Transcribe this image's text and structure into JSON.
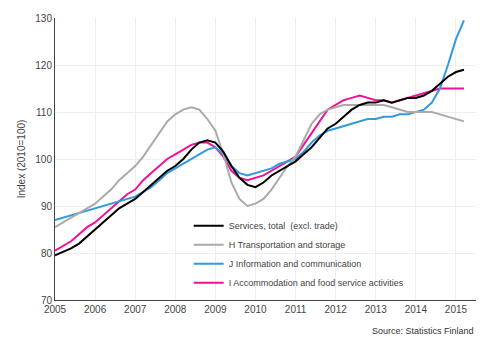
{
  "chart_data": {
    "type": "line",
    "title": "",
    "ylabel": "Index (2010=100)",
    "annotations": [
      "Source: Statistics Finland"
    ],
    "x": [
      2005.0,
      2005.2,
      2005.4,
      2005.6,
      2005.8,
      2006.0,
      2006.2,
      2006.4,
      2006.6,
      2006.8,
      2007.0,
      2007.2,
      2007.4,
      2007.6,
      2007.8,
      2008.0,
      2008.2,
      2008.4,
      2008.6,
      2008.8,
      2009.0,
      2009.2,
      2009.4,
      2009.6,
      2009.8,
      2010.0,
      2010.2,
      2010.4,
      2010.6,
      2010.8,
      2011.0,
      2011.2,
      2011.4,
      2011.6,
      2011.8,
      2012.0,
      2012.2,
      2012.4,
      2012.6,
      2012.8,
      2013.0,
      2013.2,
      2013.4,
      2013.6,
      2013.8,
      2014.0,
      2014.2,
      2014.4,
      2014.6,
      2014.8,
      2015.0,
      2015.2
    ],
    "series": [
      {
        "name": "Services, total  (excl. trade)",
        "color": "#000000",
        "values": [
          79.5,
          80.2,
          81.0,
          82.0,
          83.5,
          85.0,
          86.5,
          88.0,
          89.5,
          90.5,
          91.5,
          93.0,
          94.5,
          96.0,
          97.5,
          98.5,
          100.0,
          102.0,
          103.5,
          104.0,
          103.5,
          101.5,
          98.5,
          96.0,
          94.5,
          94.0,
          95.0,
          96.5,
          97.5,
          98.5,
          99.5,
          101.0,
          102.5,
          104.5,
          106.5,
          107.5,
          109.0,
          110.5,
          111.5,
          112.0,
          112.0,
          112.5,
          112.0,
          112.5,
          113.0,
          113.0,
          113.5,
          114.5,
          116.0,
          117.5,
          118.5,
          119.0
        ]
      },
      {
        "name": "H Transportation and storage",
        "color": "#aaaaaa",
        "values": [
          85.5,
          86.5,
          87.5,
          88.5,
          89.5,
          90.5,
          92.0,
          93.5,
          95.5,
          97.0,
          98.5,
          100.5,
          103.0,
          105.5,
          108.0,
          109.5,
          110.5,
          111.0,
          110.5,
          108.5,
          106.0,
          101.0,
          95.0,
          91.5,
          90.0,
          90.5,
          91.5,
          93.5,
          96.0,
          98.5,
          100.5,
          104.0,
          107.5,
          109.5,
          110.5,
          111.0,
          111.5,
          111.5,
          111.5,
          111.5,
          111.5,
          111.5,
          111.0,
          110.5,
          110.0,
          110.0,
          110.0,
          110.0,
          109.5,
          109.0,
          108.5,
          108.0
        ]
      },
      {
        "name": "J Information and communication",
        "color": "#3399dd",
        "values": [
          87.0,
          87.5,
          88.0,
          88.5,
          89.0,
          89.5,
          90.0,
          90.5,
          91.0,
          91.5,
          92.0,
          93.0,
          94.0,
          95.5,
          97.0,
          98.0,
          99.0,
          100.0,
          101.0,
          102.0,
          102.5,
          101.0,
          98.5,
          97.0,
          96.5,
          97.0,
          97.5,
          98.0,
          99.0,
          99.5,
          100.0,
          101.5,
          103.5,
          105.0,
          106.0,
          106.5,
          107.0,
          107.5,
          108.0,
          108.5,
          108.5,
          109.0,
          109.0,
          109.5,
          109.5,
          110.0,
          110.5,
          112.0,
          115.0,
          120.0,
          125.5,
          129.5
        ]
      },
      {
        "name": "I Accommodation and food service activities",
        "color": "#ee1199",
        "values": [
          80.5,
          81.5,
          82.5,
          84.0,
          85.5,
          86.5,
          88.0,
          89.5,
          91.0,
          92.5,
          93.5,
          95.5,
          97.0,
          98.5,
          100.0,
          101.0,
          102.0,
          103.0,
          103.5,
          103.5,
          102.5,
          100.5,
          97.5,
          96.0,
          95.5,
          96.0,
          96.5,
          97.5,
          98.5,
          99.5,
          100.5,
          103.0,
          105.5,
          108.0,
          110.5,
          111.5,
          112.5,
          113.0,
          113.5,
          113.0,
          112.5,
          112.5,
          112.0,
          112.5,
          113.0,
          113.5,
          114.0,
          114.5,
          115.0,
          115.0,
          115.0,
          115.0
        ]
      }
    ],
    "xlim": [
      2005.0,
      2015.5
    ],
    "xticks": [
      2005,
      2006,
      2007,
      2008,
      2009,
      2010,
      2011,
      2012,
      2013,
      2014,
      2015
    ],
    "ylim": [
      70,
      130
    ],
    "yticks": [
      70,
      80,
      90,
      100,
      110,
      120,
      130
    ],
    "grid": true,
    "legend": "lower center"
  }
}
